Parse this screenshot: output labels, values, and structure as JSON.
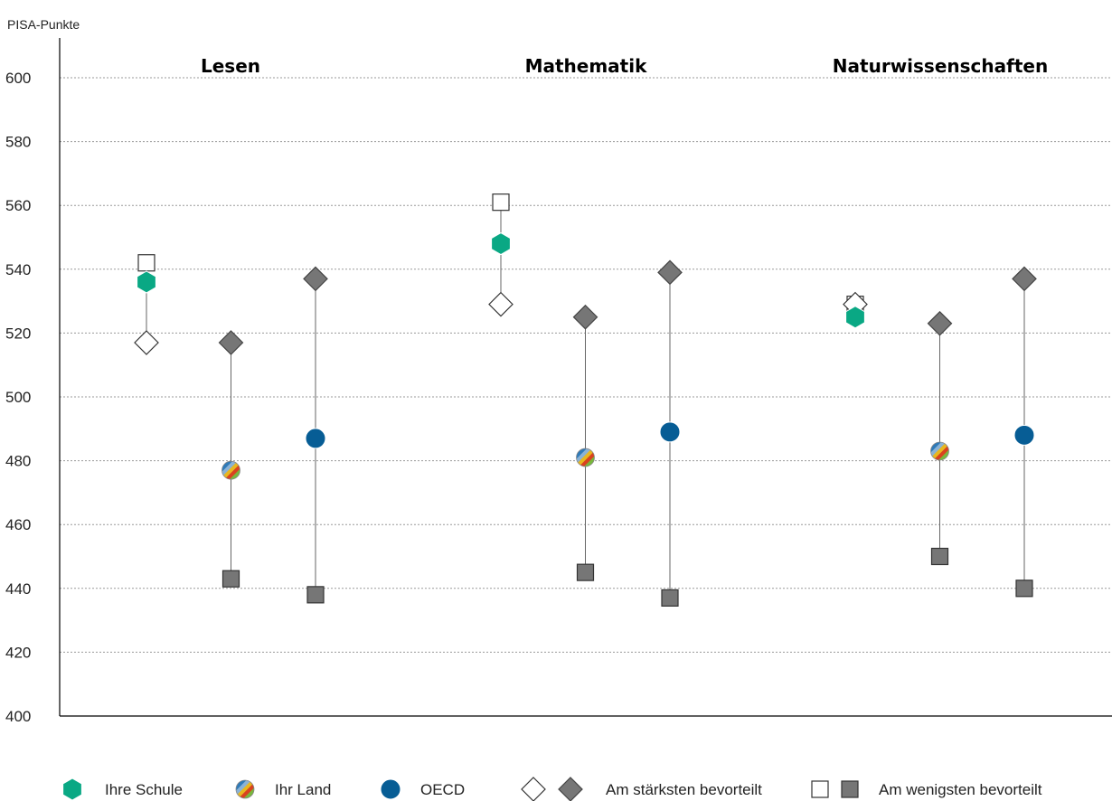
{
  "chart_data": {
    "type": "scatter",
    "ylabel": "PISA-Punkte",
    "ylim": [
      400,
      600
    ],
    "yticks": [
      400,
      420,
      440,
      460,
      480,
      500,
      520,
      540,
      560,
      580,
      600
    ],
    "grid": true,
    "legend_position": "bottom",
    "panels": [
      {
        "title": "Lesen",
        "groups": [
          {
            "series": "Ihre Schule",
            "value": 536,
            "most_advantaged": 517,
            "least_advantaged": 542
          },
          {
            "series": "Ihr Land",
            "value": 477,
            "most_advantaged": 517,
            "least_advantaged": 443
          },
          {
            "series": "OECD",
            "value": 487,
            "most_advantaged": 537,
            "least_advantaged": 438
          }
        ]
      },
      {
        "title": "Mathematik",
        "groups": [
          {
            "series": "Ihre Schule",
            "value": 548,
            "most_advantaged": 529,
            "least_advantaged": 561
          },
          {
            "series": "Ihr Land",
            "value": 481,
            "most_advantaged": 525,
            "least_advantaged": 445
          },
          {
            "series": "OECD",
            "value": 489,
            "most_advantaged": 539,
            "least_advantaged": 437
          }
        ]
      },
      {
        "title": "Naturwissenschaften",
        "groups": [
          {
            "series": "Ihre Schule",
            "value": 525,
            "most_advantaged": 529,
            "least_advantaged": 529
          },
          {
            "series": "Ihr Land",
            "value": 483,
            "most_advantaged": 523,
            "least_advantaged": 450
          },
          {
            "series": "OECD",
            "value": 488,
            "most_advantaged": 537,
            "least_advantaged": 440
          }
        ]
      }
    ],
    "legend": [
      {
        "label": "Ihre Schule",
        "icon": "green-hexagon-icon"
      },
      {
        "label": "Ihr Land",
        "icon": "striped-circle-icon"
      },
      {
        "label": "OECD",
        "icon": "blue-circle-icon"
      },
      {
        "label": "Am stärksten bevorteilt",
        "icon": "diamond-pair-icon"
      },
      {
        "label": "Am wenigsten bevorteilt",
        "icon": "square-pair-icon"
      }
    ],
    "colors": {
      "school": "#0aa884",
      "oecd": "#075d95",
      "marker_gray": "#767676",
      "country_stripes": [
        "#2f7ab8",
        "#8ab2d6",
        "#e8b71f",
        "#d9421f",
        "#78b83c"
      ]
    }
  }
}
